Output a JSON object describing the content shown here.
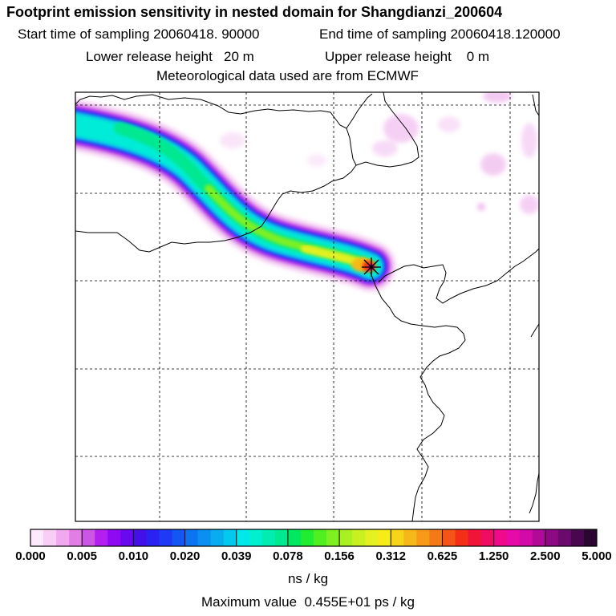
{
  "header": {
    "title": "Footprint emission sensitivity in nested domain for Shangdianzi_200604",
    "start_label": "Start time of sampling 20060418. 90000",
    "end_label": "End time of sampling 20060418.120000",
    "lower_label": "Lower release height   20 m",
    "upper_label": "Upper release height    0 m",
    "met_label": "Meteorological data used are from ECMWF"
  },
  "colorbar": {
    "ticks": [
      "0.000",
      "0.005",
      "0.010",
      "0.020",
      "0.039",
      "0.078",
      "0.156",
      "0.312",
      "0.625",
      "1.250",
      "2.500",
      "5.000"
    ],
    "unit": "ns / kg",
    "colors": [
      "#fde9fb",
      "#f9cdf5",
      "#f2a8ef",
      "#e27de6",
      "#cc55e6",
      "#b21fee",
      "#8f0af2",
      "#6a08f0",
      "#4410ea",
      "#2a22f2",
      "#1d3af6",
      "#1356f3",
      "#0a74f1",
      "#0a90f0",
      "#08acef",
      "#05c8ee",
      "#00e8ea",
      "#00f0d0",
      "#00ecb0",
      "#00e890",
      "#00e860",
      "#20ec30",
      "#50f020",
      "#7ef020",
      "#a8f020",
      "#c8f020",
      "#e4f020",
      "#f6ec18",
      "#f6d418",
      "#f6b818",
      "#f69a18",
      "#f47a18",
      "#f45418",
      "#f23018",
      "#f01438",
      "#f00c60",
      "#ee0a8a",
      "#e60aa8",
      "#d20aa8",
      "#b20a98",
      "#8e0a84",
      "#6a0a6c",
      "#48084e",
      "#2a0630"
    ]
  },
  "footer": {
    "max_value": "Maximum value  0.455E+01 ps / kg"
  },
  "map": {
    "receptor_marker": "x-star-marker"
  }
}
